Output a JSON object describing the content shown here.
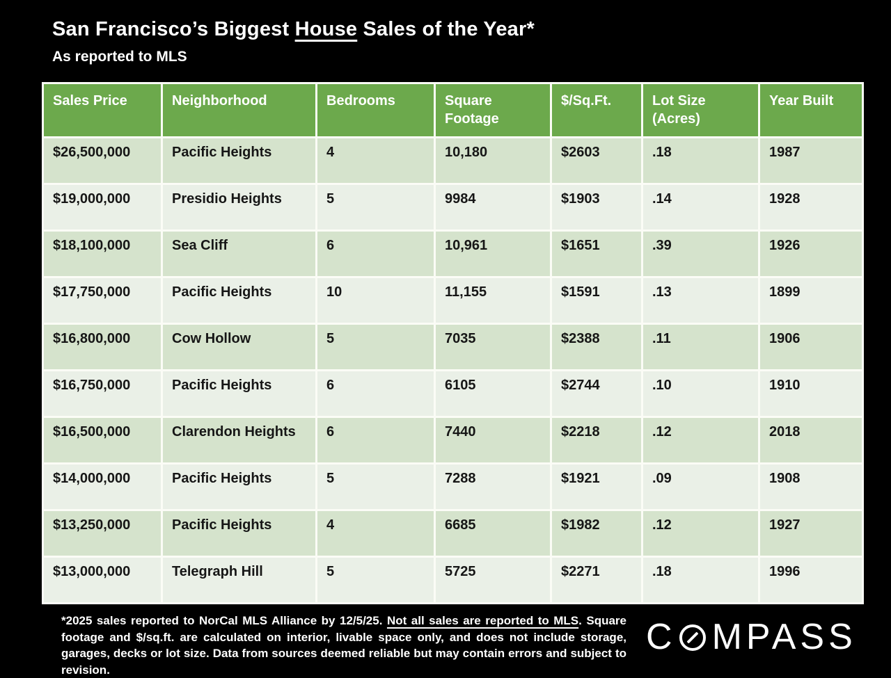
{
  "colors": {
    "background": "#000000",
    "header_green": "#6ca94c",
    "row_dark": "#d5e3cc",
    "row_light": "#eaf0e7",
    "grid_line": "#fbfcf6",
    "title_text": "#ffffff",
    "cell_text": "#161616"
  },
  "title": {
    "part1": "San Francisco’s Biggest ",
    "underlined": "House",
    "part3": " Sales of the Year*"
  },
  "subtitle": "As reported to MLS",
  "table": {
    "columns": [
      "Sales Price",
      "Neighborhood",
      "Bedrooms",
      "Square\nFootage",
      "$/Sq.Ft.",
      "Lot Size\n(Acres)",
      "Year Built"
    ],
    "rows": [
      [
        "$26,500,000",
        "Pacific Heights",
        "4",
        "10,180",
        "$2603",
        ".18",
        "1987"
      ],
      [
        "$19,000,000",
        "Presidio Heights",
        "5",
        "9984",
        "$1903",
        ".14",
        "1928"
      ],
      [
        "$18,100,000",
        "Sea Cliff",
        "6",
        "10,961",
        "$1651",
        ".39",
        "1926"
      ],
      [
        "$17,750,000",
        "Pacific Heights",
        "10",
        "11,155",
        "$1591",
        ".13",
        "1899"
      ],
      [
        "$16,800,000",
        "Cow Hollow",
        "5",
        "7035",
        "$2388",
        ".11",
        "1906"
      ],
      [
        "$16,750,000",
        "Pacific Heights",
        "6",
        "6105",
        "$2744",
        ".10",
        "1910"
      ],
      [
        "$16,500,000",
        "Clarendon Heights",
        "6",
        "7440",
        "$2218",
        ".12",
        "2018"
      ],
      [
        "$14,000,000",
        "Pacific Heights",
        "5",
        "7288",
        "$1921",
        ".09",
        "1908"
      ],
      [
        "$13,250,000",
        "Pacific Heights",
        "4",
        "6685",
        "$1982",
        ".12",
        "1927"
      ],
      [
        "$13,000,000",
        "Telegraph Hill",
        "5",
        "5725",
        "$2271",
        ".18",
        "1996"
      ]
    ]
  },
  "footnote": {
    "part1": "*2025 sales reported to NorCal MLS Alliance by 12/5/25. ",
    "underlined": "Not all sales are reported to MLS",
    "part3": ". Square footage and $/sq.ft. are calculated on interior, livable space only, and does not include storage, garages, decks or lot size. Data from sources deemed reliable but may contain errors and subject to revision."
  },
  "logo": {
    "part1": "C",
    "part2": "MPASS"
  },
  "chart_data": {
    "type": "table",
    "title": "San Francisco’s Biggest House Sales of the Year*",
    "subtitle": "As reported to MLS",
    "columns": [
      "Sales Price",
      "Neighborhood",
      "Bedrooms",
      "Square Footage",
      "$/Sq.Ft.",
      "Lot Size (Acres)",
      "Year Built"
    ],
    "rows": [
      [
        "$26,500,000",
        "Pacific Heights",
        "4",
        "10,180",
        "$2603",
        ".18",
        "1987"
      ],
      [
        "$19,000,000",
        "Presidio Heights",
        "5",
        "9984",
        "$1903",
        ".14",
        "1928"
      ],
      [
        "$18,100,000",
        "Sea Cliff",
        "6",
        "10,961",
        "$1651",
        ".39",
        "1926"
      ],
      [
        "$17,750,000",
        "Pacific Heights",
        "10",
        "11,155",
        "$1591",
        ".13",
        "1899"
      ],
      [
        "$16,800,000",
        "Cow Hollow",
        "5",
        "7035",
        "$2388",
        ".11",
        "1906"
      ],
      [
        "$16,750,000",
        "Pacific Heights",
        "6",
        "6105",
        "$2744",
        ".10",
        "1910"
      ],
      [
        "$16,500,000",
        "Clarendon Heights",
        "6",
        "7440",
        "$2218",
        ".12",
        "2018"
      ],
      [
        "$14,000,000",
        "Pacific Heights",
        "5",
        "7288",
        "$1921",
        ".09",
        "1908"
      ],
      [
        "$13,250,000",
        "Pacific Heights",
        "4",
        "6685",
        "$1982",
        ".12",
        "1927"
      ],
      [
        "$13,000,000",
        "Telegraph Hill",
        "5",
        "5725",
        "$2271",
        ".18",
        "1996"
      ]
    ],
    "footnote": "*2025 sales reported to NorCal MLS Alliance by 12/5/25. Not all sales are reported to MLS. Square footage and $/sq.ft. are calculated on interior, livable space only, and does not include storage, garages, decks or lot size. Data from sources deemed reliable but may contain errors and subject to revision.",
    "brand": "COMPASS"
  }
}
